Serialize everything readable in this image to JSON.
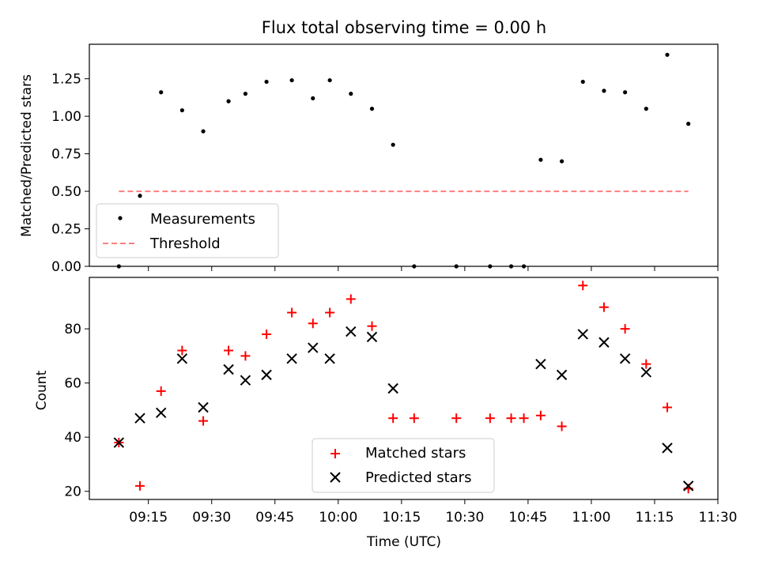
{
  "chart_data": [
    {
      "type": "scatter",
      "title": "Flux total observing time = 0.00 h",
      "ylabel": "Matched/Predicted stars",
      "ylim": [
        0,
        1.48
      ],
      "yticks": [
        "0.00",
        "0.25",
        "0.50",
        "0.75",
        "1.00",
        "1.25"
      ],
      "legend_position": "lower-left",
      "series": [
        {
          "name": "Measurements",
          "marker": "dot",
          "color": "#000000",
          "x": [
            "09:08",
            "09:13",
            "09:18",
            "09:23",
            "09:28",
            "09:34",
            "09:38",
            "09:43",
            "09:49",
            "09:54",
            "09:58",
            "10:03",
            "10:08",
            "10:13",
            "10:18",
            "10:28",
            "10:36",
            "10:41",
            "10:44",
            "10:48",
            "10:53",
            "10:58",
            "11:03",
            "11:08",
            "11:13",
            "11:18",
            "11:23"
          ],
          "y": [
            0.0,
            0.47,
            1.16,
            1.04,
            0.9,
            1.1,
            1.15,
            1.23,
            1.24,
            1.12,
            1.24,
            1.15,
            1.05,
            0.81,
            0.0,
            0.0,
            0.0,
            0.0,
            0.0,
            0.71,
            0.7,
            1.23,
            1.17,
            1.16,
            1.05,
            1.41,
            0.95
          ]
        },
        {
          "name": "Threshold",
          "style": "dashed-line",
          "color": "#ff7f7f",
          "x": [
            "09:08",
            "11:23"
          ],
          "y": [
            0.5,
            0.5
          ]
        }
      ]
    },
    {
      "type": "scatter",
      "xlabel": "Time (UTC)",
      "ylabel": "Count",
      "xlim": [
        "09:01",
        "11:30"
      ],
      "ylim": [
        17,
        99
      ],
      "xticks": [
        "09:15",
        "09:30",
        "09:45",
        "10:00",
        "10:15",
        "10:30",
        "10:45",
        "11:00",
        "11:15",
        "11:30"
      ],
      "yticks": [
        "20",
        "40",
        "60",
        "80"
      ],
      "legend_position": "lower-center",
      "series": [
        {
          "name": "Matched stars",
          "marker": "plus",
          "color": "#ff0000",
          "x": [
            "09:08",
            "09:13",
            "09:18",
            "09:23",
            "09:28",
            "09:34",
            "09:38",
            "09:43",
            "09:49",
            "09:54",
            "09:58",
            "10:03",
            "10:08",
            "10:13",
            "10:18",
            "10:28",
            "10:36",
            "10:41",
            "10:44",
            "10:48",
            "10:53",
            "10:58",
            "11:03",
            "11:08",
            "11:13",
            "11:18",
            "11:23"
          ],
          "y": [
            38,
            22,
            57,
            72,
            46,
            72,
            70,
            78,
            86,
            82,
            86,
            91,
            81,
            47,
            47,
            47,
            47,
            47,
            47,
            48,
            44,
            96,
            88,
            80,
            67,
            51,
            21
          ]
        },
        {
          "name": "Predicted stars",
          "marker": "x",
          "color": "#000000",
          "x": [
            "09:08",
            "09:13",
            "09:18",
            "09:23",
            "09:28",
            "09:34",
            "09:38",
            "09:43",
            "09:49",
            "09:54",
            "09:58",
            "10:03",
            "10:08",
            "10:13",
            "10:48",
            "10:53",
            "10:58",
            "11:03",
            "11:08",
            "11:13",
            "11:18",
            "11:23"
          ],
          "y": [
            38,
            47,
            49,
            69,
            51,
            65,
            61,
            63,
            69,
            73,
            69,
            79,
            77,
            58,
            67,
            63,
            78,
            75,
            69,
            64,
            36,
            22
          ]
        }
      ]
    }
  ]
}
